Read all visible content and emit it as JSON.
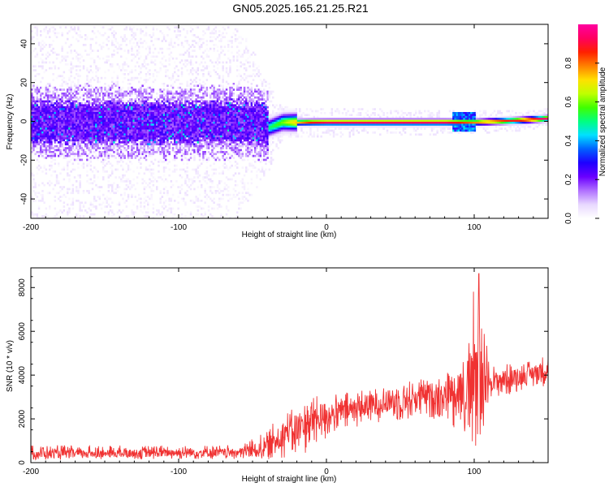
{
  "title": "GN05.2025.165.21.25.R21",
  "chart_data": [
    {
      "type": "heatmap",
      "xlabel": "Height of straight line (km)",
      "ylabel": "Frequency (Hz)",
      "xlim": [
        -200,
        150
      ],
      "ylim": [
        -50,
        50
      ],
      "x_ticks": [
        -200,
        -100,
        0,
        100
      ],
      "y_ticks": [
        -40,
        -20,
        0,
        20,
        40
      ],
      "colorbar": {
        "label": "Normalized spectral amplitude",
        "range": [
          0.0,
          1.0
        ],
        "ticks": [
          0.0,
          0.2,
          0.4,
          0.6,
          0.8
        ],
        "tick_labels": [
          "0.0",
          "0.2",
          "0.4",
          "0.6",
          "0.8"
        ],
        "colormap": [
          "#ffffff",
          "#e8d8ff",
          "#b070ff",
          "#6a00ff",
          "#1e00ff",
          "#0060ff",
          "#00e0ff",
          "#00ff80",
          "#40ff00",
          "#c0ff00",
          "#ffe000",
          "#ff8000",
          "#ff2000",
          "#ff0060",
          "#ff00a0"
        ]
      },
      "band_center_hz": [
        {
          "x": -200,
          "f": 0
        },
        {
          "x": -45,
          "f": 0
        },
        {
          "x": -40,
          "f": -3
        },
        {
          "x": -30,
          "f": 0
        },
        {
          "x": 90,
          "f": 0
        },
        {
          "x": 100,
          "f": 0
        },
        {
          "x": 130,
          "f": 1
        },
        {
          "x": 150,
          "f": 2
        }
      ],
      "band_peak_amplitude": [
        {
          "x": -200,
          "a": 0.2
        },
        {
          "x": -50,
          "a": 0.25
        },
        {
          "x": -45,
          "a": 0.45
        },
        {
          "x": -30,
          "a": 0.6
        },
        {
          "x": -10,
          "a": 0.9
        },
        {
          "x": 0,
          "a": 0.95
        },
        {
          "x": 80,
          "a": 0.95
        },
        {
          "x": 100,
          "a": 0.8
        },
        {
          "x": 150,
          "a": 0.95
        }
      ],
      "noise_halfwidth_hz": [
        {
          "x": -200,
          "w": 50
        },
        {
          "x": -60,
          "w": 50
        },
        {
          "x": -45,
          "w": 30
        },
        {
          "x": -30,
          "w": 6
        },
        {
          "x": 150,
          "w": 3
        }
      ]
    },
    {
      "type": "line",
      "xlabel": "Height of straight line (km)",
      "ylabel": "SNR (10 * v/v)",
      "xlim": [
        -200,
        150
      ],
      "ylim": [
        0,
        8900
      ],
      "x_ticks": [
        -200,
        -100,
        0,
        100
      ],
      "y_ticks": [
        0,
        2000,
        4000,
        6000,
        8000
      ],
      "color": "#f03232",
      "series": [
        {
          "name": "",
          "x": [
            -200,
            -150,
            -100,
            -60,
            -40,
            -30,
            -20,
            -10,
            0,
            20,
            40,
            60,
            80,
            95,
            100,
            105,
            110,
            120,
            130,
            140,
            150
          ],
          "y_min": [
            100,
            150,
            150,
            150,
            150,
            200,
            300,
            500,
            1000,
            1600,
            1800,
            2000,
            2000,
            1000,
            200,
            500,
            3000,
            3000,
            3200,
            3400,
            3500
          ],
          "y_max": [
            800,
            800,
            800,
            800,
            1500,
            2300,
            2500,
            3000,
            3100,
            3300,
            3600,
            3800,
            4100,
            5000,
            8200,
            8900,
            4500,
            4500,
            4600,
            4700,
            5000
          ],
          "y_mid": [
            400,
            400,
            450,
            450,
            600,
            1300,
            1700,
            2000,
            2200,
            2500,
            2800,
            3000,
            3200,
            3500,
            3800,
            3600,
            3700,
            3800,
            3900,
            4100,
            4300
          ]
        }
      ]
    }
  ]
}
